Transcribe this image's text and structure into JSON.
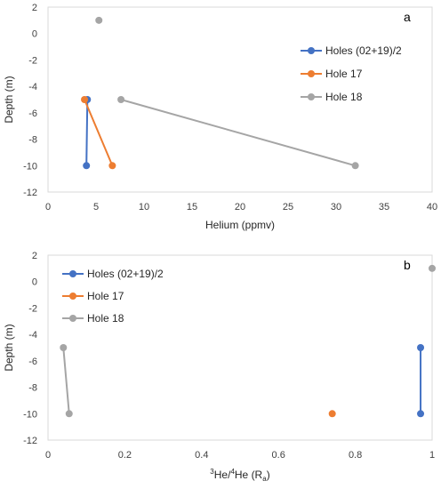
{
  "chart_data": [
    {
      "type": "line",
      "panel_label": "a",
      "xlabel": "Helium (ppmv)",
      "ylabel": "Depth (m)",
      "xlim": [
        0,
        40
      ],
      "ylim": [
        -12,
        2
      ],
      "xticks": [
        "0",
        "5",
        "10",
        "15",
        "20",
        "25",
        "30",
        "35",
        "40"
      ],
      "yticks": [
        "2",
        "0",
        "-2",
        "-4",
        "-6",
        "-8",
        "-10",
        "-12"
      ],
      "grid": false,
      "legend_position": "right",
      "series": [
        {
          "name": "Holes (02+19)/2",
          "color": "#4472c4",
          "points": [
            {
              "x": 4.1,
              "y": -5
            },
            {
              "x": 4.0,
              "y": -10
            }
          ]
        },
        {
          "name": "Hole 17",
          "color": "#ed7d31",
          "points": [
            {
              "x": 3.8,
              "y": -5
            },
            {
              "x": 6.7,
              "y": -10
            }
          ]
        },
        {
          "name": "Hole 18",
          "color": "#a5a5a5",
          "points": [
            {
              "x": 7.6,
              "y": -5
            },
            {
              "x": 32.0,
              "y": -10
            }
          ],
          "isolated_points": [
            {
              "x": 5.3,
              "y": 1
            }
          ]
        }
      ]
    },
    {
      "type": "line",
      "panel_label": "b",
      "xlabel_parts": {
        "sup1": "3",
        "base1": "He/",
        "sup2": "4",
        "base2": "He (R",
        "sub": "a",
        "end": ")"
      },
      "ylabel": "Depth (m)",
      "xlim": [
        0,
        1
      ],
      "ylim": [
        -12,
        2
      ],
      "xticks": [
        "0",
        "0.2",
        "0.4",
        "0.6",
        "0.8",
        "1"
      ],
      "yticks": [
        "2",
        "0",
        "-2",
        "-4",
        "-6",
        "-8",
        "-10",
        "-12"
      ],
      "grid": false,
      "legend_position": "top-left",
      "series": [
        {
          "name": "Holes (02+19)/2",
          "color": "#4472c4",
          "points": [
            {
              "x": 0.97,
              "y": -5
            },
            {
              "x": 0.97,
              "y": -10
            }
          ]
        },
        {
          "name": "Hole 17",
          "color": "#ed7d31",
          "points": [
            {
              "x": 0.74,
              "y": -10
            }
          ]
        },
        {
          "name": "Hole 18",
          "color": "#a5a5a5",
          "points": [
            {
              "x": 0.04,
              "y": -5
            },
            {
              "x": 0.055,
              "y": -10
            }
          ],
          "isolated_points": [
            {
              "x": 1.0,
              "y": 1
            }
          ]
        }
      ]
    }
  ]
}
